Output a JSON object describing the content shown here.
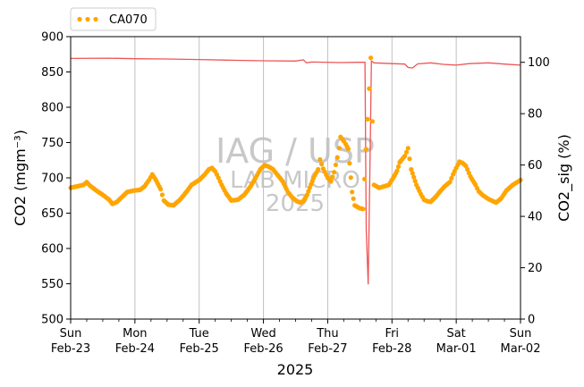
{
  "chart_data": {
    "type": "line",
    "xlabel": "2025",
    "ylabel": "CO2 (mgm⁻³)",
    "ylabel2": "CO2_sig (%)",
    "ylim": [
      500,
      900
    ],
    "ylim2": [
      0,
      110
    ],
    "yticks": [
      "500",
      "550",
      "600",
      "650",
      "700",
      "750",
      "800",
      "850",
      "900"
    ],
    "yticks2": [
      "0",
      "20",
      "40",
      "60",
      "80",
      "100"
    ],
    "xlim": [
      "2025-02-23 00:00",
      "2025-03-02 00:00"
    ],
    "xticks": [
      {
        "day": "Sun",
        "date": "Feb-23"
      },
      {
        "day": "Mon",
        "date": "Feb-24"
      },
      {
        "day": "Tue",
        "date": "Feb-25"
      },
      {
        "day": "Wed",
        "date": "Feb-26"
      },
      {
        "day": "Thu",
        "date": "Feb-27"
      },
      {
        "day": "Fri",
        "date": "Feb-28"
      },
      {
        "day": "Sat",
        "date": "Mar-01"
      },
      {
        "day": "Sun",
        "date": "Mar-02"
      }
    ],
    "grid": "vertical lines at day ticks",
    "legend": "top-left, outside above plot",
    "watermark": [
      "IAG / USP",
      "LAB MICRO",
      "2025"
    ],
    "colors": {
      "co2": "#ffa500",
      "co2_sig": "#ee5555",
      "grid": "#c0c0c0",
      "watermark": "#c8c8c8",
      "ylabel2": "#f4a0a0"
    },
    "series": [
      {
        "name": "CA070",
        "axis": "left",
        "style": "dotted-markers",
        "points": [
          [
            0.0,
            686
          ],
          [
            0.1,
            688
          ],
          [
            0.2,
            690
          ],
          [
            0.25,
            694
          ],
          [
            0.3,
            689
          ],
          [
            0.4,
            682
          ],
          [
            0.5,
            676
          ],
          [
            0.6,
            669
          ],
          [
            0.65,
            663
          ],
          [
            0.72,
            666
          ],
          [
            0.8,
            673
          ],
          [
            0.88,
            680
          ],
          [
            0.98,
            682
          ],
          [
            1.08,
            683
          ],
          [
            1.15,
            688
          ],
          [
            1.22,
            697
          ],
          [
            1.27,
            705
          ],
          [
            1.32,
            698
          ],
          [
            1.4,
            684
          ],
          [
            1.45,
            668
          ],
          [
            1.52,
            662
          ],
          [
            1.6,
            661
          ],
          [
            1.7,
            669
          ],
          [
            1.8,
            680
          ],
          [
            1.88,
            690
          ],
          [
            2.0,
            697
          ],
          [
            2.08,
            704
          ],
          [
            2.15,
            712
          ],
          [
            2.2,
            714
          ],
          [
            2.25,
            709
          ],
          [
            2.3,
            700
          ],
          [
            2.35,
            690
          ],
          [
            2.42,
            678
          ],
          [
            2.5,
            668
          ],
          [
            2.6,
            669
          ],
          [
            2.7,
            676
          ],
          [
            2.8,
            688
          ],
          [
            2.88,
            700
          ],
          [
            2.95,
            712
          ],
          [
            3.02,
            718
          ],
          [
            3.08,
            716
          ],
          [
            3.15,
            712
          ],
          [
            3.22,
            704
          ],
          [
            3.3,
            695
          ],
          [
            3.38,
            680
          ],
          [
            3.45,
            672
          ],
          [
            3.52,
            667
          ],
          [
            3.58,
            665
          ],
          [
            3.62,
            667
          ],
          [
            3.68,
            676
          ],
          [
            3.72,
            686
          ],
          [
            3.78,
            700
          ],
          [
            3.85,
            712
          ],
          [
            3.88,
            726
          ],
          [
            3.93,
            713
          ],
          [
            4.0,
            700
          ],
          [
            4.05,
            695
          ],
          [
            4.1,
            708
          ],
          [
            4.15,
            729
          ],
          [
            4.18,
            742
          ],
          [
            4.2,
            758
          ],
          [
            4.25,
            752
          ],
          [
            4.28,
            748
          ],
          [
            4.32,
            741
          ],
          [
            4.38,
            680
          ],
          [
            4.42,
            661
          ],
          [
            4.5,
            657
          ],
          [
            4.55,
            656
          ],
          [
            4.62,
            783
          ],
          [
            4.67,
            870
          ],
          [
            4.72,
            690
          ],
          [
            4.8,
            686
          ],
          [
            4.88,
            688
          ],
          [
            4.95,
            690
          ],
          [
            5.02,
            700
          ],
          [
            5.08,
            710
          ],
          [
            5.12,
            722
          ],
          [
            5.2,
            731
          ],
          [
            5.25,
            742
          ],
          [
            5.3,
            712
          ],
          [
            5.38,
            690
          ],
          [
            5.45,
            677
          ],
          [
            5.5,
            669
          ],
          [
            5.55,
            667
          ],
          [
            5.6,
            666
          ],
          [
            5.68,
            673
          ],
          [
            5.75,
            681
          ],
          [
            5.82,
            688
          ],
          [
            5.9,
            694
          ],
          [
            5.95,
            705
          ],
          [
            6.0,
            714
          ],
          [
            6.05,
            723
          ],
          [
            6.1,
            721
          ],
          [
            6.15,
            717
          ],
          [
            6.22,
            702
          ],
          [
            6.3,
            690
          ],
          [
            6.35,
            681
          ],
          [
            6.42,
            675
          ],
          [
            6.5,
            670
          ],
          [
            6.55,
            668
          ],
          [
            6.62,
            665
          ],
          [
            6.7,
            671
          ],
          [
            6.78,
            682
          ],
          [
            6.88,
            690
          ],
          [
            6.95,
            694
          ],
          [
            7.0,
            697
          ]
        ]
      },
      {
        "name": "CO2_sig",
        "axis": "right",
        "style": "line",
        "points": [
          [
            0.0,
            101.5
          ],
          [
            0.6,
            101.6
          ],
          [
            1.0,
            101.4
          ],
          [
            1.5,
            101.3
          ],
          [
            2.0,
            101.1
          ],
          [
            2.5,
            100.8
          ],
          [
            3.0,
            100.6
          ],
          [
            3.5,
            100.5
          ],
          [
            3.62,
            101.0
          ],
          [
            3.67,
            99.8
          ],
          [
            3.75,
            100.1
          ],
          [
            4.2,
            99.9
          ],
          [
            4.5,
            100.0
          ],
          [
            4.58,
            100.0
          ],
          [
            4.6,
            35.0
          ],
          [
            4.63,
            13.5
          ],
          [
            4.66,
            65.0
          ],
          [
            4.68,
            100.5
          ],
          [
            4.72,
            99.8
          ],
          [
            5.0,
            99.5
          ],
          [
            5.2,
            99.3
          ],
          [
            5.25,
            98.0
          ],
          [
            5.32,
            97.8
          ],
          [
            5.4,
            99.4
          ],
          [
            5.6,
            99.8
          ],
          [
            5.8,
            99.2
          ],
          [
            6.0,
            98.9
          ],
          [
            6.2,
            99.5
          ],
          [
            6.5,
            99.8
          ],
          [
            6.75,
            99.3
          ],
          [
            7.0,
            98.9
          ]
        ]
      }
    ]
  }
}
